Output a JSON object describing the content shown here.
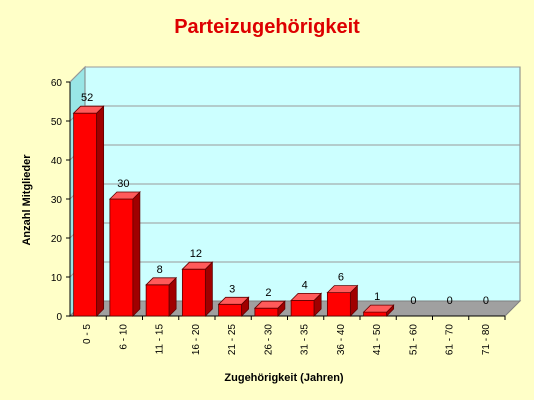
{
  "chart_data": {
    "type": "bar",
    "title": "Parteizugehörigkeit",
    "xlabel": "Zugehörigkeit (Jahren)",
    "ylabel": "Anzahl Mitglieder",
    "categories": [
      "0 - 5",
      "6 - 10",
      "11 - 15",
      "16 - 20",
      "21 - 25",
      "26 - 30",
      "31 - 35",
      "36 - 40",
      "41 - 50",
      "51 - 60",
      "61 - 70",
      "71 - 80"
    ],
    "values": [
      52,
      30,
      8,
      12,
      3,
      2,
      4,
      6,
      1,
      0,
      0,
      0
    ],
    "yticks": [
      0,
      10,
      20,
      30,
      40,
      50,
      60
    ],
    "ylim": [
      0,
      60
    ],
    "grid": true,
    "colors": {
      "bar_front": "#ff0000",
      "bar_side": "#a00000",
      "bar_top": "#ff5a5a",
      "plot_back": "#ccffff",
      "plot_side": "#99e6e6",
      "floor": "#a0a0a0",
      "title": "#dd0000",
      "page": "#ffffc8"
    }
  }
}
